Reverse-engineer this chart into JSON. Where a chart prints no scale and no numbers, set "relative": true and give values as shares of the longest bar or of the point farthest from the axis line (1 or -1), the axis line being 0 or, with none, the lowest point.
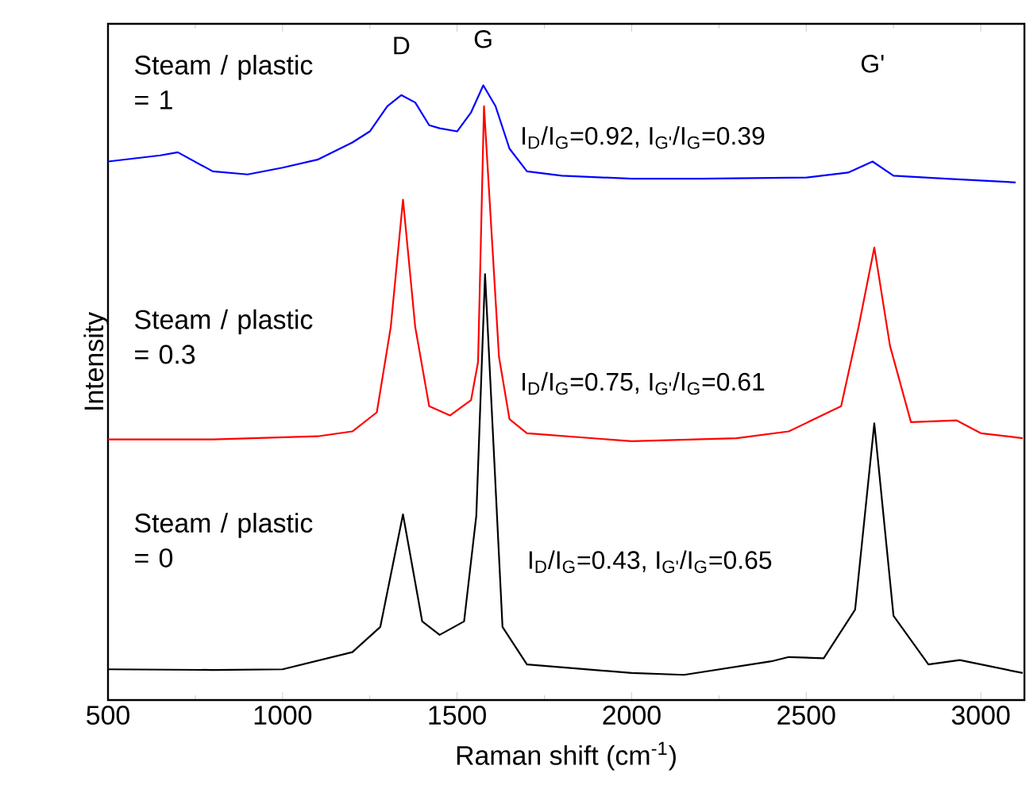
{
  "chart_data": {
    "type": "line",
    "relative": true,
    "tick_labels": "x",
    "xlabel": "Raman shift (cm$^{-1}$)",
    "ylabel": "Intensity",
    "xlim": [
      500,
      3125
    ],
    "xticks": [
      500,
      1000,
      1500,
      2000,
      2500,
      3000
    ],
    "series": [
      {
        "name": "Steam / plastic = 1",
        "color": "#0000ff",
        "x": [
          500,
          650,
          700,
          800,
          900,
          1000,
          1100,
          1200,
          1250,
          1300,
          1340,
          1380,
          1420,
          1450,
          1500,
          1540,
          1575,
          1610,
          1650,
          1700,
          1800,
          2000,
          2200,
          2500,
          2620,
          2690,
          2750,
          2900,
          3100
        ],
        "values": [
          0.876,
          0.886,
          0.891,
          0.86,
          0.855,
          0.866,
          0.879,
          0.907,
          0.925,
          0.966,
          0.984,
          0.972,
          0.935,
          0.93,
          0.925,
          0.956,
          1.0,
          0.966,
          0.897,
          0.86,
          0.853,
          0.848,
          0.848,
          0.85,
          0.858,
          0.876,
          0.853,
          0.848,
          0.842
        ]
      },
      {
        "name": "Steam / plastic = 0.3",
        "color": "#ff0000",
        "x": [
          500,
          800,
          1100,
          1200,
          1270,
          1310,
          1345,
          1380,
          1420,
          1480,
          1540,
          1560,
          1577,
          1620,
          1650,
          1700,
          2000,
          2300,
          2450,
          2600,
          2650,
          2695,
          2740,
          2800,
          2930,
          3000,
          3120
        ],
        "values": [
          0.424,
          0.424,
          0.429,
          0.437,
          0.468,
          0.607,
          0.814,
          0.607,
          0.478,
          0.463,
          0.488,
          0.55,
          0.966,
          0.558,
          0.457,
          0.434,
          0.421,
          0.426,
          0.437,
          0.478,
          0.607,
          0.736,
          0.576,
          0.452,
          0.455,
          0.434,
          0.426
        ]
      },
      {
        "name": "Steam / plastic = 0",
        "color": "#000000",
        "x": [
          500,
          800,
          1000,
          1200,
          1280,
          1345,
          1400,
          1450,
          1520,
          1555,
          1580,
          1630,
          1700,
          2000,
          2150,
          2400,
          2450,
          2550,
          2640,
          2695,
          2750,
          2850,
          2940,
          3120
        ],
        "values": [
          0.05,
          0.049,
          0.05,
          0.078,
          0.119,
          0.302,
          0.128,
          0.106,
          0.128,
          0.3,
          0.693,
          0.119,
          0.058,
          0.044,
          0.041,
          0.063,
          0.07,
          0.068,
          0.147,
          0.45,
          0.137,
          0.058,
          0.065,
          0.044
        ]
      }
    ],
    "annotations": [
      "D",
      "G",
      "G'",
      "I$_{D}$/I$_{G}$=0.92, I$_{G'}$/I$_{G}$=0.39",
      "I$_{D}$/I$_{G}$=0.75, I$_{G'}$/I$_{G}$=0.61",
      "I$_{D}$/I$_{G}$=0.43, I$_{G'}$/I$_{G}$=0.65"
    ]
  }
}
